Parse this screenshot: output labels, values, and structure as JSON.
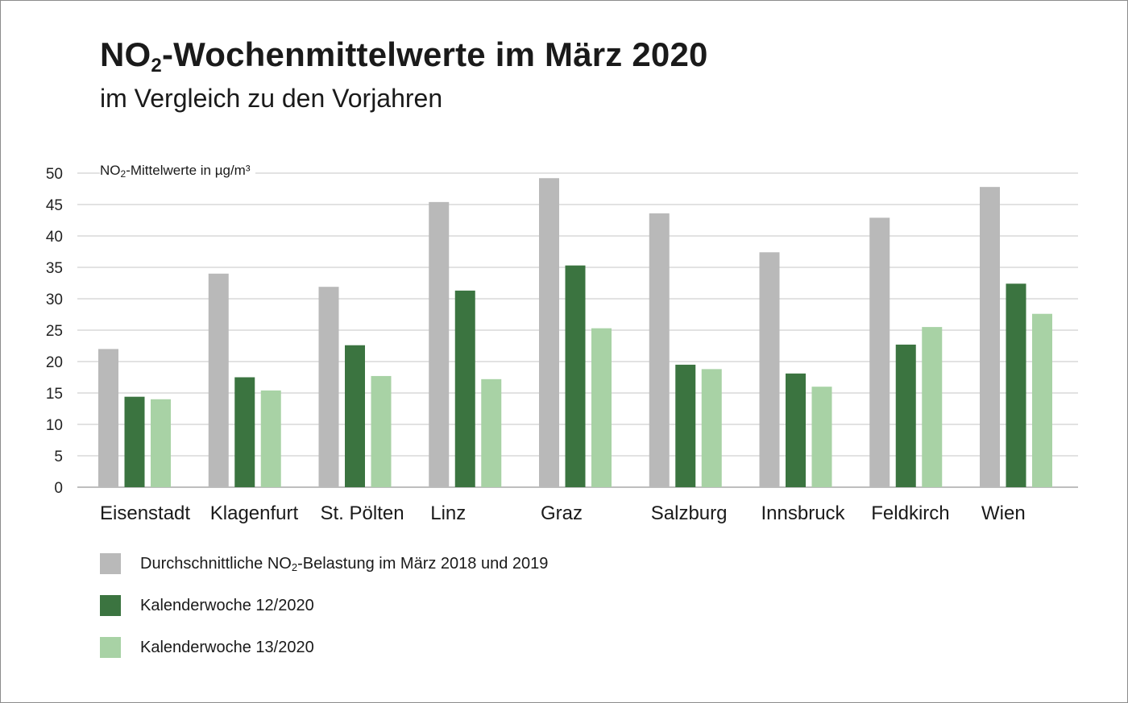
{
  "title": {
    "prefix": "NO",
    "subscript": "2",
    "suffix": "-Wochenmittelwerte im März 2020"
  },
  "subtitle": "im Vergleich zu den Vorjahren",
  "chart_data": {
    "type": "bar",
    "title": "NO2-Wochenmittelwerte im März 2020",
    "subtitle": "im Vergleich zu den Vorjahren",
    "ylabel": "NO2-Mittelwerte in µg/m³",
    "ylim": [
      0,
      50
    ],
    "yticks": [
      0,
      5,
      10,
      15,
      20,
      25,
      30,
      35,
      40,
      45,
      50
    ],
    "grid": true,
    "legend_position": "bottom",
    "categories": [
      "Eisenstadt",
      "Klagenfurt",
      "St. Pölten",
      "Linz",
      "Graz",
      "Salzburg",
      "Innsbruck",
      "Feldkirch",
      "Wien"
    ],
    "series": [
      {
        "name": "Durchschnittliche NO2-Belastung im März 2018 und 2019",
        "color": "#b9b9b9",
        "values": [
          22,
          34,
          31.9,
          45.4,
          49.2,
          43.6,
          37.4,
          42.9,
          47.8
        ]
      },
      {
        "name": "Kalenderwoche 12/2020",
        "color": "#3b7440",
        "values": [
          14.4,
          17.5,
          22.6,
          31.3,
          35.3,
          19.5,
          18.1,
          22.7,
          32.4
        ]
      },
      {
        "name": "Kalenderwoche 13/2020",
        "color": "#a8d2a5",
        "values": [
          14,
          15.4,
          17.7,
          17.2,
          25.3,
          18.8,
          16,
          25.5,
          27.6
        ]
      }
    ]
  },
  "unit_label": {
    "prefix": "NO",
    "subscript": "2",
    "suffix": "-Mittelwerte in µg/m³"
  },
  "legend": [
    {
      "prefix": "Durchschnittliche NO",
      "subscript": "2",
      "suffix": "-Belastung im März 2018 und 2019",
      "color": "#b9b9b9"
    },
    {
      "prefix": "Kalenderwoche 12/2020",
      "subscript": "",
      "suffix": "",
      "color": "#3b7440"
    },
    {
      "prefix": "Kalenderwoche 13/2020",
      "subscript": "",
      "suffix": "",
      "color": "#a8d2a5"
    }
  ]
}
